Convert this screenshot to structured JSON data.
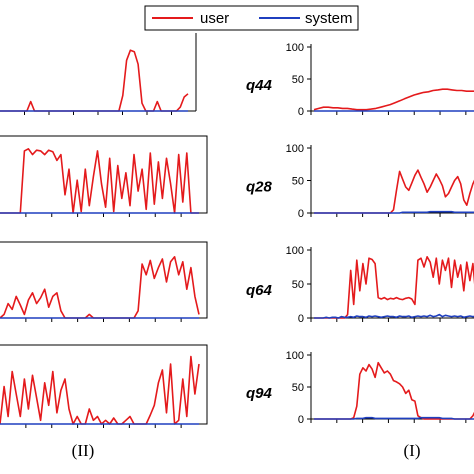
{
  "legend": {
    "items": [
      {
        "label": "user",
        "color": "#e41a1c"
      },
      {
        "label": "system",
        "color": "#1f3fbf"
      }
    ]
  },
  "captions": {
    "left": "(II)",
    "right": "(I)"
  },
  "colors": {
    "user": "#e41a1c",
    "system": "#1f3fbf",
    "axis": "#000000"
  },
  "chart_data": [
    {
      "type": "line",
      "column": "II",
      "row": 1,
      "y_hidden_left": true,
      "series": [
        {
          "name": "user",
          "values": [
            0,
            0,
            0,
            0,
            0,
            0,
            0,
            0,
            12,
            0,
            0,
            0,
            0,
            0,
            0,
            0,
            0,
            0,
            0,
            0,
            0,
            0,
            0,
            0,
            0,
            0,
            0,
            0,
            0,
            0,
            0,
            0,
            20,
            65,
            78,
            76,
            60,
            10,
            0,
            0,
            0,
            12,
            0,
            0,
            0,
            0,
            0,
            5,
            18,
            22
          ]
        },
        {
          "name": "system",
          "values": [
            0,
            0,
            0,
            0,
            0,
            0,
            0,
            0,
            0,
            0,
            0,
            0,
            0,
            0,
            0,
            0,
            0,
            0,
            0,
            0,
            0,
            0,
            0,
            0,
            0,
            0,
            0,
            0,
            0,
            0,
            0,
            0,
            0,
            0,
            0,
            0,
            0,
            0,
            0,
            0,
            0,
            0,
            0,
            0,
            0,
            0,
            0,
            0,
            0,
            0
          ]
        }
      ]
    },
    {
      "type": "line",
      "column": "II",
      "row": 2,
      "y_hidden_left": true,
      "series": [
        {
          "name": "user",
          "values": [
            0,
            0,
            0,
            0,
            0,
            0,
            85,
            88,
            80,
            86,
            85,
            80,
            86,
            84,
            72,
            80,
            25,
            60,
            0,
            45,
            2,
            60,
            10,
            50,
            85,
            40,
            8,
            75,
            2,
            65,
            20,
            55,
            10,
            80,
            30,
            60,
            5,
            82,
            12,
            70,
            20,
            75,
            40,
            0,
            80,
            15,
            82,
            0,
            0,
            0
          ]
        },
        {
          "name": "system",
          "values": [
            0,
            0,
            0,
            0,
            0,
            0,
            0,
            0,
            0,
            0,
            0,
            0,
            0,
            0,
            0,
            0,
            0,
            0,
            0,
            0,
            0,
            0,
            0,
            0,
            0,
            0,
            0,
            0,
            0,
            0,
            0,
            0,
            0,
            0,
            0,
            0,
            0,
            0,
            0,
            0,
            0,
            0,
            0,
            0,
            0,
            0,
            0,
            0,
            0,
            0
          ]
        }
      ]
    },
    {
      "type": "line",
      "column": "II",
      "row": 3,
      "y_hidden_left": true,
      "series": [
        {
          "name": "user",
          "values": [
            0,
            5,
            20,
            12,
            30,
            18,
            5,
            25,
            35,
            20,
            28,
            40,
            15,
            30,
            35,
            10,
            0,
            0,
            0,
            0,
            0,
            0,
            5,
            0,
            0,
            0,
            0,
            0,
            0,
            0,
            0,
            0,
            0,
            0,
            10,
            75,
            60,
            80,
            55,
            70,
            82,
            50,
            78,
            85,
            60,
            78,
            40,
            70,
            30,
            5
          ]
        },
        {
          "name": "system",
          "values": [
            0,
            0,
            0,
            0,
            0,
            0,
            0,
            0,
            0,
            0,
            0,
            0,
            0,
            0,
            0,
            0,
            0,
            0,
            0,
            0,
            0,
            0,
            0,
            0,
            0,
            0,
            0,
            0,
            0,
            0,
            0,
            0,
            0,
            0,
            0,
            0,
            0,
            0,
            0,
            0,
            0,
            0,
            0,
            0,
            0,
            0,
            0,
            0,
            0,
            0
          ]
        }
      ]
    },
    {
      "type": "line",
      "column": "II",
      "row": 4,
      "y_hidden_left": true,
      "series": [
        {
          "name": "user",
          "values": [
            0,
            50,
            10,
            70,
            40,
            10,
            60,
            20,
            65,
            35,
            5,
            55,
            25,
            70,
            15,
            45,
            60,
            20,
            0,
            10,
            0,
            0,
            20,
            5,
            10,
            0,
            5,
            0,
            8,
            0,
            0,
            5,
            10,
            0,
            0,
            0,
            0,
            12,
            25,
            55,
            72,
            15,
            80,
            0,
            5,
            60,
            10,
            90,
            40,
            80
          ]
        },
        {
          "name": "system",
          "values": [
            0,
            0,
            0,
            0,
            0,
            0,
            0,
            0,
            0,
            0,
            0,
            0,
            0,
            0,
            0,
            0,
            0,
            0,
            0,
            0,
            0,
            0,
            0,
            0,
            0,
            0,
            0,
            0,
            0,
            0,
            0,
            0,
            0,
            0,
            0,
            0,
            0,
            0,
            0,
            0,
            0,
            0,
            0,
            0,
            0,
            0,
            0,
            0,
            0,
            0
          ]
        }
      ]
    },
    {
      "type": "line",
      "column": "I",
      "row": 1,
      "label": "q44",
      "y_ticks": [
        "100",
        "50",
        "0"
      ],
      "ylim": [
        0,
        100
      ],
      "series": [
        {
          "name": "user",
          "values": [
            2,
            4,
            6,
            6,
            5,
            5,
            4,
            4,
            3,
            2,
            2,
            2,
            3,
            4,
            6,
            8,
            10,
            13,
            16,
            19,
            22,
            25,
            27,
            29,
            30,
            32,
            33,
            34,
            34,
            33,
            32,
            32,
            31,
            31,
            31
          ]
        },
        {
          "name": "system",
          "values": [
            0,
            0,
            0,
            0,
            0,
            0,
            0,
            0,
            0,
            0,
            0,
            0,
            0,
            0,
            0,
            0,
            0,
            0,
            0,
            0,
            0,
            0,
            0,
            0,
            0,
            0,
            0,
            0,
            0,
            0,
            0,
            0,
            0,
            0,
            0
          ]
        }
      ]
    },
    {
      "type": "line",
      "column": "I",
      "row": 2,
      "label": "q28",
      "y_ticks": [
        "100",
        "50",
        "0"
      ],
      "ylim": [
        0,
        100
      ],
      "series": [
        {
          "name": "user",
          "values": [
            0,
            0,
            0,
            0,
            0,
            0,
            0,
            0,
            0,
            0,
            0,
            0,
            0,
            0,
            0,
            0,
            0,
            0,
            0,
            0,
            0,
            0,
            0,
            0,
            0,
            0,
            5,
            35,
            64,
            52,
            40,
            35,
            46,
            58,
            66,
            55,
            45,
            32,
            40,
            50,
            60,
            52,
            42,
            25,
            30,
            40,
            50,
            56,
            45,
            20,
            12,
            30,
            45,
            55
          ]
        },
        {
          "name": "system",
          "values": [
            0,
            0,
            0,
            0,
            0,
            0,
            0,
            0,
            0,
            0,
            0,
            0,
            0,
            0,
            0,
            0,
            0,
            0,
            0,
            0,
            0,
            0,
            0,
            0,
            0,
            0,
            0,
            0,
            0,
            1,
            1,
            1,
            1,
            1,
            1,
            1,
            1,
            1,
            2,
            2,
            2,
            2,
            2,
            2,
            2,
            2,
            1,
            1,
            1,
            1,
            1,
            1,
            1,
            1
          ]
        }
      ]
    },
    {
      "type": "line",
      "column": "I",
      "row": 3,
      "label": "q64",
      "y_ticks": [
        "100",
        "50",
        "0"
      ],
      "ylim": [
        0,
        100
      ],
      "series": [
        {
          "name": "user",
          "values": [
            0,
            0,
            0,
            0,
            0,
            0,
            0,
            0,
            0,
            0,
            0,
            5,
            70,
            20,
            85,
            40,
            80,
            50,
            88,
            86,
            80,
            30,
            28,
            30,
            27,
            29,
            28,
            30,
            28,
            27,
            29,
            30,
            28,
            20,
            85,
            88,
            75,
            90,
            82,
            60,
            88,
            50,
            85,
            70,
            88,
            45,
            85,
            60,
            78,
            40,
            82,
            55,
            80,
            30
          ]
        },
        {
          "name": "system",
          "values": [
            0,
            0,
            0,
            0,
            1,
            0,
            1,
            1,
            0,
            2,
            1,
            1,
            2,
            1,
            3,
            2,
            2,
            1,
            3,
            2,
            3,
            2,
            1,
            2,
            3,
            2,
            2,
            1,
            3,
            2,
            2,
            3,
            1,
            2,
            3,
            2,
            3,
            2,
            4,
            2,
            3,
            5,
            2,
            4,
            3,
            2,
            3,
            2,
            3,
            1,
            2,
            3,
            2,
            2
          ]
        }
      ]
    },
    {
      "type": "line",
      "column": "I",
      "row": 4,
      "label": "q94",
      "y_ticks": [
        "100",
        "50",
        "0"
      ],
      "ylim": [
        0,
        100
      ],
      "series": [
        {
          "name": "user",
          "values": [
            0,
            0,
            0,
            0,
            0,
            0,
            0,
            0,
            0,
            0,
            0,
            0,
            0,
            2,
            20,
            70,
            80,
            75,
            85,
            78,
            65,
            88,
            80,
            72,
            75,
            70,
            60,
            58,
            55,
            50,
            40,
            45,
            30,
            28,
            5,
            2,
            0,
            0,
            0,
            0,
            0,
            0,
            0,
            0,
            0,
            0,
            0,
            0,
            0,
            0,
            0,
            0,
            5,
            15
          ]
        },
        {
          "name": "system",
          "values": [
            0,
            0,
            0,
            0,
            0,
            0,
            0,
            0,
            0,
            0,
            0,
            0,
            0,
            0,
            1,
            1,
            1,
            2,
            2,
            2,
            1,
            1,
            1,
            1,
            1,
            1,
            1,
            1,
            1,
            1,
            1,
            1,
            1,
            1,
            1,
            2,
            2,
            2,
            2,
            2,
            2,
            2,
            1,
            1,
            1,
            1,
            0,
            0,
            0,
            0,
            0,
            0,
            0,
            0
          ]
        }
      ]
    }
  ]
}
